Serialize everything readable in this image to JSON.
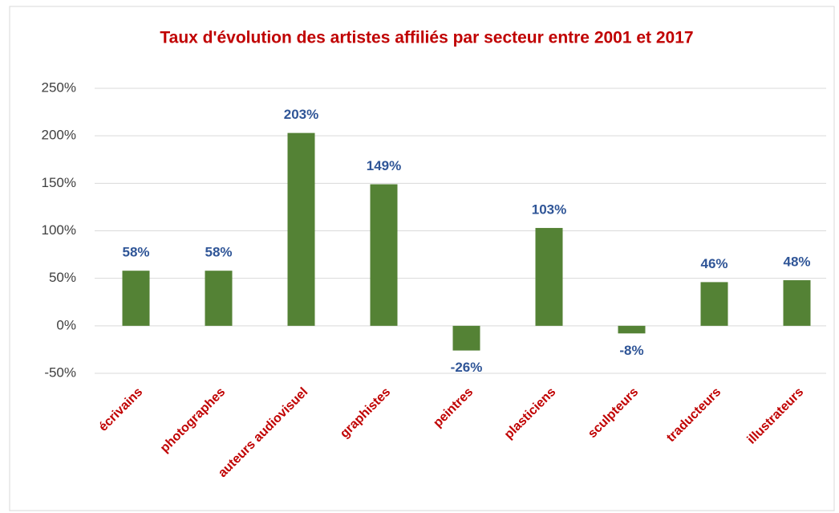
{
  "chart_data": {
    "type": "bar",
    "title": "Taux d'évolution des artistes affiliés par secteur entre 2001 et 2017",
    "categories": [
      "écrivains",
      "photographes",
      "auteurs audiovisuel",
      "graphistes",
      "peintres",
      "plasticiens",
      "sculpteurs",
      "traducteurs",
      "illustrateurs"
    ],
    "values": [
      58,
      58,
      203,
      149,
      -26,
      103,
      -8,
      46,
      48
    ],
    "value_labels": [
      "58%",
      "58%",
      "203%",
      "149%",
      "-26%",
      "103%",
      "-8%",
      "46%",
      "48%"
    ],
    "color": "#548235",
    "ylim": [
      -50,
      250
    ],
    "yticks": [
      {
        "value": -50,
        "label": "-50%"
      },
      {
        "value": 0,
        "label": "0%"
      },
      {
        "value": 50,
        "label": "50%"
      },
      {
        "value": 100,
        "label": "100%"
      },
      {
        "value": 150,
        "label": "150%"
      },
      {
        "value": 200,
        "label": "200%"
      },
      {
        "value": 250,
        "label": "250%"
      }
    ],
    "grid": true
  }
}
